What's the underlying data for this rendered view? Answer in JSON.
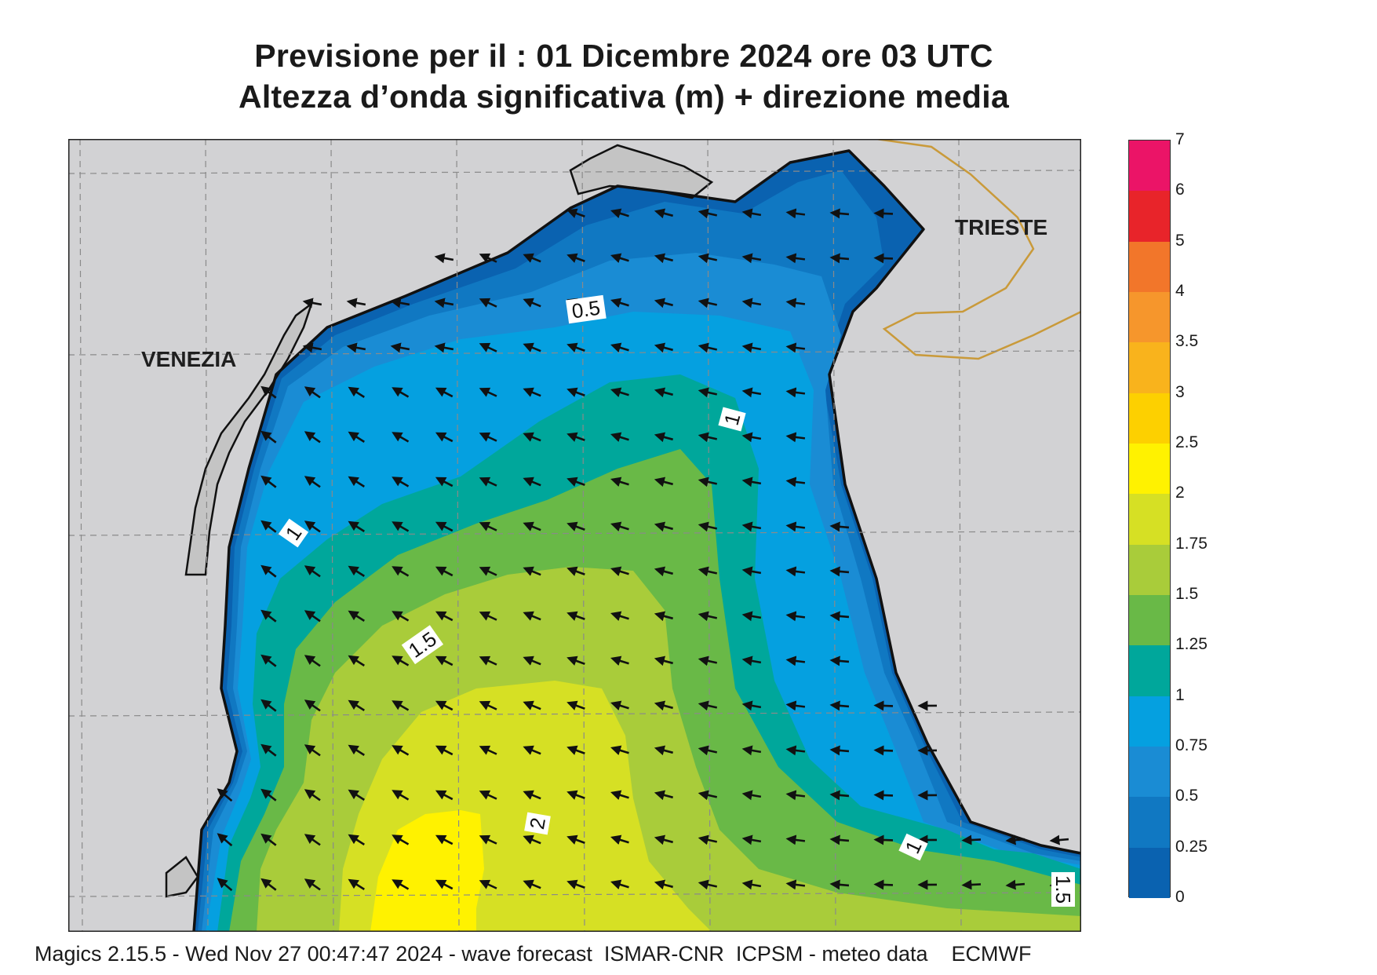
{
  "header": {
    "title_line1": "Previsione per il  :  01 Dicembre  2024   ore 03 UTC",
    "title_line2": "Altezza d’onda significativa (m) + direzione media"
  },
  "map": {
    "cities": [
      {
        "name": "VENEZIA"
      },
      {
        "name": "TRIESTE"
      }
    ],
    "contour_labels": [
      "0.5",
      "1",
      "1",
      "1.5",
      "2",
      "1",
      "1.5"
    ],
    "colors": {
      "land": "#d2d2d4",
      "lagoon": "#c4c4c4",
      "coast": "#111111",
      "border": "#c99a3a",
      "grid": "#8a8a8a"
    }
  },
  "legend": {
    "ticks": [
      "7",
      "6",
      "5",
      "4",
      "3.5",
      "3",
      "2.5",
      "2",
      "1.75",
      "1.5",
      "1.25",
      "1",
      "0.75",
      "0.5",
      "0.25",
      "0"
    ],
    "colors": [
      "#eb1467",
      "#e8242a",
      "#f2762a",
      "#f6962c",
      "#f9b31c",
      "#fdd000",
      "#fff200",
      "#d6e024",
      "#a9cc3a",
      "#69b947",
      "#00a79b",
      "#05a0e0",
      "#1a8cd4",
      "#1078c2",
      "#0a62b0"
    ]
  },
  "footer": {
    "text": "Magics 2.15.5 - Wed Nov 27 00:47:47 2024 - wave forecast  ISMAR-CNR  ICPSM - meteo data    ECMWF"
  }
}
